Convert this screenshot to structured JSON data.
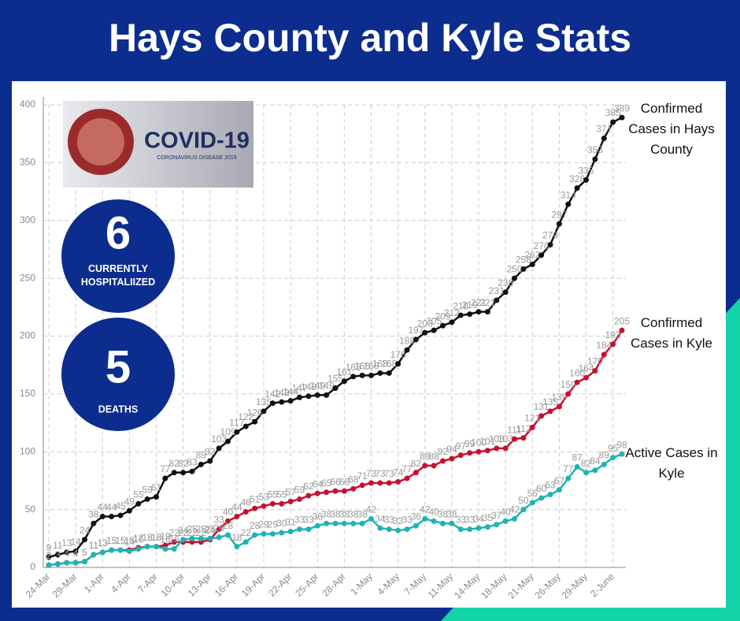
{
  "header": {
    "title": "Hays County and Kyle Stats"
  },
  "image_text": {
    "title": "COVID-19",
    "subtitle": "CORONAVIRUS DISEASE 2019"
  },
  "stats": [
    {
      "value": 6,
      "label": "CURRENTLY HOSPITALIIZED"
    },
    {
      "value": 5,
      "label": "DEATHS"
    }
  ],
  "chart_data": {
    "type": "line",
    "categories": [
      "24-Mar",
      null,
      null,
      "29-Mar",
      null,
      null,
      "1-Apr",
      null,
      null,
      "4-Apr",
      null,
      null,
      "7-Apr",
      null,
      null,
      "10-Apr",
      null,
      null,
      "13-Apr",
      null,
      null,
      "16-Apr",
      null,
      null,
      "19-Apr",
      null,
      null,
      "22-Apr",
      null,
      null,
      "25-Apr",
      null,
      null,
      "28-Apr",
      null,
      null,
      "1-May",
      null,
      null,
      "4-May",
      null,
      null,
      "7-May",
      null,
      null,
      "11-May",
      null,
      null,
      "14-May",
      null,
      null,
      "18-May",
      null,
      null,
      "21-May",
      null,
      null,
      "26-May",
      null,
      null,
      "29-May",
      null,
      null,
      "2-June",
      null
    ],
    "series": [
      {
        "name": "Confirmed Cases in Hays County",
        "color": "#111111",
        "values": [
          9,
          11,
          13,
          14,
          24,
          38,
          44,
          44,
          45,
          49,
          55,
          59,
          61,
          77,
          82,
          82,
          83,
          89,
          92,
          103,
          109,
          117,
          122,
          126,
          135,
          142,
          143,
          144,
          147,
          148,
          149,
          149,
          155,
          161,
          165,
          166,
          166,
          168,
          168,
          176,
          188,
          197,
          203,
          205,
          209,
          212,
          218,
          219,
          221,
          221,
          231,
          238,
          250,
          258,
          262,
          270,
          279,
          297,
          314,
          328,
          335,
          353,
          371,
          385,
          389
        ]
      },
      {
        "name": "Confirmed Cases in Kyle",
        "color": "#c8102e",
        "values": [
          2,
          3,
          4,
          4,
          5,
          11,
          13,
          15,
          15,
          15,
          17,
          18,
          18,
          19,
          22,
          22,
          22,
          22,
          24,
          33,
          40,
          44,
          48,
          51,
          53,
          55,
          55,
          57,
          59,
          62,
          64,
          65,
          66,
          66,
          68,
          71,
          73,
          73,
          73,
          74,
          77,
          82,
          88,
          88,
          92,
          94,
          97,
          99,
          100,
          101,
          103,
          103,
          111,
          112,
          121,
          131,
          135,
          139,
          150,
          160,
          164,
          170,
          184,
          193,
          205
        ]
      },
      {
        "name": "Active Cases in Kyle",
        "color": "#1fb3b3",
        "values": [
          2,
          3,
          4,
          4,
          5,
          11,
          13,
          15,
          15,
          14,
          16,
          18,
          18,
          16,
          16,
          24,
          25,
          25,
          25,
          26,
          28,
          18,
          22,
          28,
          29,
          29,
          30,
          31,
          33,
          33,
          36,
          38,
          38,
          38,
          38,
          38,
          42,
          34,
          33,
          32,
          33,
          36,
          42,
          40,
          38,
          38,
          33,
          33,
          34,
          35,
          37,
          40,
          42,
          50,
          56,
          60,
          63,
          67,
          77,
          87,
          82,
          84,
          89,
          95,
          98
        ]
      }
    ],
    "ylim": [
      0,
      400
    ],
    "yticks": [
      0,
      50,
      100,
      150,
      200,
      250,
      300,
      350,
      400
    ],
    "grid": true
  }
}
